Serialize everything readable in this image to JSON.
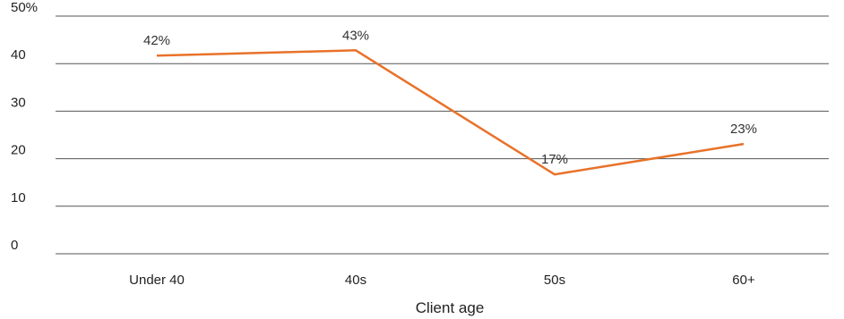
{
  "chart_data": {
    "type": "line",
    "categories": [
      "Under 40",
      "40s",
      "50s",
      "60+"
    ],
    "series": [
      {
        "values": [
          41.7,
          42.8,
          16.7,
          23.1
        ],
        "labels": [
          "42%",
          "43%",
          "17%",
          "23%"
        ],
        "color": "#E8722A"
      }
    ],
    "xlabel": "Client age",
    "ylabel": "",
    "ylim": [
      0,
      50
    ],
    "yticks": [
      0,
      10,
      20,
      30,
      40,
      50
    ],
    "ytick_labels": [
      "0",
      "10",
      "20",
      "30",
      "40",
      "50%"
    ],
    "grid": true,
    "gridline_color": "#555555",
    "legend": "none"
  }
}
